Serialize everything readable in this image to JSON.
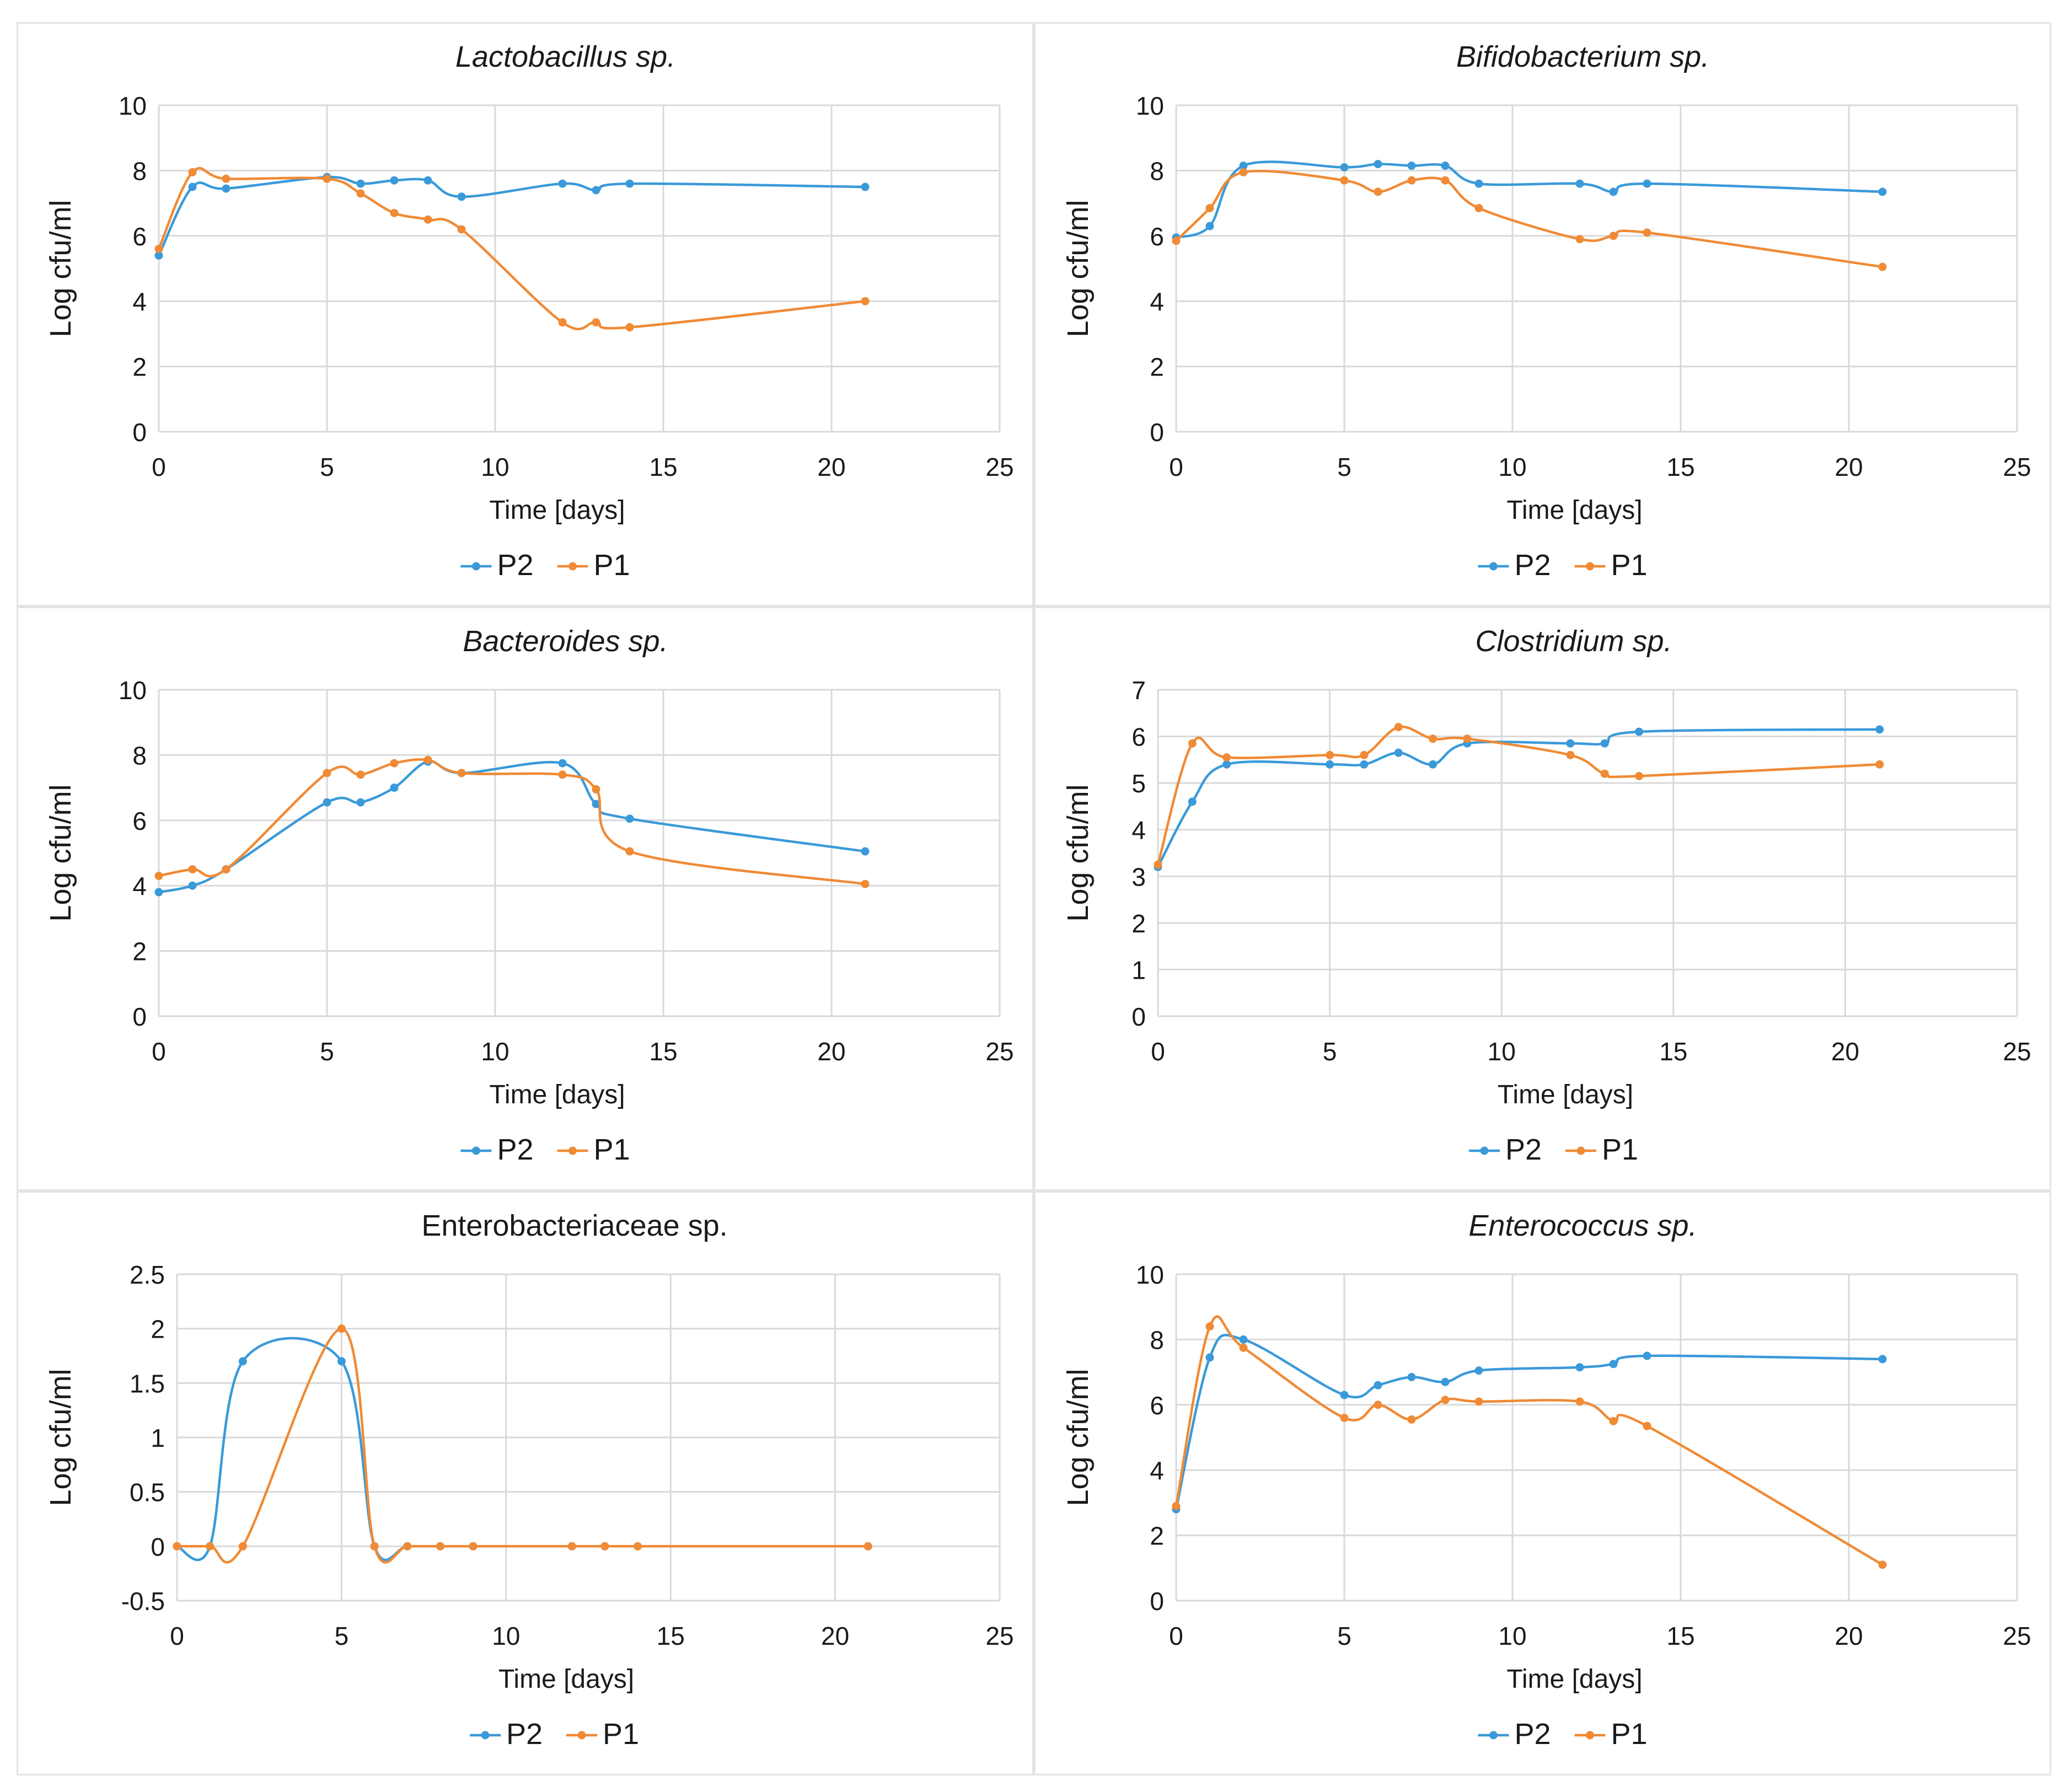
{
  "figure_title": "",
  "colors": {
    "P2": "#3a9ad9",
    "P1": "#f08a35",
    "grid": "#d9d9d9",
    "text": "#1a1a1a"
  },
  "chart_data": [
    {
      "type": "line",
      "title": "Lactobacillus sp.",
      "title_italic": true,
      "xlabel": "Time [days]",
      "ylabel": "Log cfu/ml",
      "xlim": [
        0,
        25
      ],
      "xticks": [
        0,
        5,
        10,
        15,
        20,
        25
      ],
      "ylim": [
        0,
        10
      ],
      "yticks": [
        0,
        2,
        4,
        6,
        8,
        10
      ],
      "legend": "bottom-center",
      "series": [
        {
          "name": "P2",
          "x": [
            0,
            1,
            2,
            5,
            6,
            7,
            8,
            9,
            12,
            13,
            14,
            21
          ],
          "y": [
            5.4,
            7.5,
            7.45,
            7.8,
            7.6,
            7.7,
            7.7,
            7.2,
            7.6,
            7.4,
            7.6,
            7.5
          ]
        },
        {
          "name": "P1",
          "x": [
            0,
            1,
            2,
            5,
            6,
            7,
            8,
            9,
            12,
            13,
            14,
            21
          ],
          "y": [
            5.6,
            7.95,
            7.75,
            7.75,
            7.3,
            6.7,
            6.5,
            6.2,
            3.35,
            3.35,
            3.2,
            4.0
          ]
        }
      ]
    },
    {
      "type": "line",
      "title": "Bifidobacterium sp.",
      "title_italic": true,
      "xlabel": "Time [days]",
      "ylabel": "Log cfu/ml",
      "xlim": [
        0,
        25
      ],
      "xticks": [
        0,
        5,
        10,
        15,
        20,
        25
      ],
      "ylim": [
        0,
        10
      ],
      "yticks": [
        0,
        2,
        4,
        6,
        8,
        10
      ],
      "legend": "bottom-center",
      "series": [
        {
          "name": "P2",
          "x": [
            0,
            1,
            2,
            5,
            6,
            7,
            8,
            9,
            12,
            13,
            14,
            21
          ],
          "y": [
            5.95,
            6.3,
            8.15,
            8.1,
            8.2,
            8.15,
            8.15,
            7.6,
            7.6,
            7.35,
            7.6,
            7.35
          ]
        },
        {
          "name": "P1",
          "x": [
            0,
            1,
            2,
            5,
            6,
            7,
            8,
            9,
            12,
            13,
            14,
            21
          ],
          "y": [
            5.85,
            6.85,
            7.95,
            7.7,
            7.35,
            7.7,
            7.7,
            6.85,
            5.9,
            6.0,
            6.1,
            5.05
          ]
        }
      ]
    },
    {
      "type": "line",
      "title": "Bacteroides sp.",
      "title_italic": true,
      "xlabel": "Time [days]",
      "ylabel": "Log cfu/ml",
      "xlim": [
        0,
        25
      ],
      "xticks": [
        0,
        5,
        10,
        15,
        20,
        25
      ],
      "ylim": [
        0,
        10
      ],
      "yticks": [
        0,
        2,
        4,
        6,
        8,
        10
      ],
      "legend": "bottom-center",
      "series": [
        {
          "name": "P2",
          "x": [
            0,
            1,
            2,
            5,
            6,
            7,
            8,
            9,
            12,
            13,
            14,
            21
          ],
          "y": [
            3.8,
            4.0,
            4.5,
            6.55,
            6.55,
            7.0,
            7.8,
            7.45,
            7.75,
            6.5,
            6.05,
            5.05
          ]
        },
        {
          "name": "P1",
          "x": [
            0,
            1,
            2,
            5,
            6,
            7,
            8,
            9,
            12,
            13,
            14,
            21
          ],
          "y": [
            4.3,
            4.5,
            4.5,
            7.45,
            7.4,
            7.75,
            7.85,
            7.45,
            7.4,
            6.95,
            5.05,
            4.05
          ]
        }
      ]
    },
    {
      "type": "line",
      "title": "Clostridium sp.",
      "title_italic": true,
      "xlabel": "Time [days]",
      "ylabel": "Log cfu/ml",
      "xlim": [
        0,
        25
      ],
      "xticks": [
        0,
        5,
        10,
        15,
        20,
        25
      ],
      "ylim": [
        0,
        7
      ],
      "yticks": [
        0,
        1,
        2,
        3,
        4,
        5,
        6,
        7
      ],
      "legend": "bottom-center",
      "series": [
        {
          "name": "P2",
          "x": [
            0,
            1,
            2,
            5,
            6,
            7,
            8,
            9,
            12,
            13,
            14,
            21
          ],
          "y": [
            3.2,
            4.6,
            5.4,
            5.4,
            5.4,
            5.65,
            5.4,
            5.85,
            5.85,
            5.85,
            6.1,
            6.15
          ]
        },
        {
          "name": "P1",
          "x": [
            0,
            1,
            2,
            5,
            6,
            7,
            8,
            9,
            12,
            13,
            14,
            21
          ],
          "y": [
            3.25,
            5.85,
            5.55,
            5.6,
            5.6,
            6.2,
            5.95,
            5.95,
            5.6,
            5.2,
            5.15,
            5.4
          ]
        }
      ]
    },
    {
      "type": "line",
      "title": "Enterobacteriaceae sp.",
      "title_italic": false,
      "xlabel": "Time [days]",
      "ylabel": "Log cfu/ml",
      "xlim": [
        0,
        25
      ],
      "xticks": [
        0,
        5,
        10,
        15,
        20,
        25
      ],
      "ylim": [
        -0.5,
        2.5
      ],
      "yticks": [
        -0.5,
        0,
        0.5,
        1,
        1.5,
        2,
        2.5
      ],
      "legend": "bottom-center",
      "series": [
        {
          "name": "P2",
          "x": [
            0,
            1,
            2,
            5,
            6,
            7,
            8,
            9,
            12,
            13,
            14,
            21
          ],
          "y": [
            0,
            0,
            1.7,
            1.7,
            0,
            0,
            0,
            0,
            0,
            0,
            0,
            0
          ]
        },
        {
          "name": "P1",
          "x": [
            0,
            1,
            2,
            5,
            6,
            7,
            8,
            9,
            12,
            13,
            14,
            21
          ],
          "y": [
            0,
            0,
            0,
            2.0,
            0,
            0,
            0,
            0,
            0,
            0,
            0,
            0
          ]
        }
      ]
    },
    {
      "type": "line",
      "title": "Enterococcus sp.",
      "title_italic": true,
      "xlabel": "Time [days]",
      "ylabel": "Log cfu/ml",
      "xlim": [
        0,
        25
      ],
      "xticks": [
        0,
        5,
        10,
        15,
        20,
        25
      ],
      "ylim": [
        0,
        10
      ],
      "yticks": [
        0,
        2,
        4,
        6,
        8,
        10
      ],
      "legend": "bottom-center",
      "series": [
        {
          "name": "P2",
          "x": [
            0,
            1,
            2,
            5,
            6,
            7,
            8,
            9,
            12,
            13,
            14,
            21
          ],
          "y": [
            2.8,
            7.45,
            8.0,
            6.3,
            6.6,
            6.85,
            6.7,
            7.05,
            7.15,
            7.25,
            7.5,
            7.4
          ]
        },
        {
          "name": "P1",
          "x": [
            0,
            1,
            2,
            5,
            6,
            7,
            8,
            9,
            12,
            13,
            14,
            21
          ],
          "y": [
            2.9,
            8.4,
            7.75,
            5.6,
            6.0,
            5.55,
            6.15,
            6.1,
            6.1,
            5.5,
            5.35,
            1.1
          ]
        }
      ]
    }
  ]
}
